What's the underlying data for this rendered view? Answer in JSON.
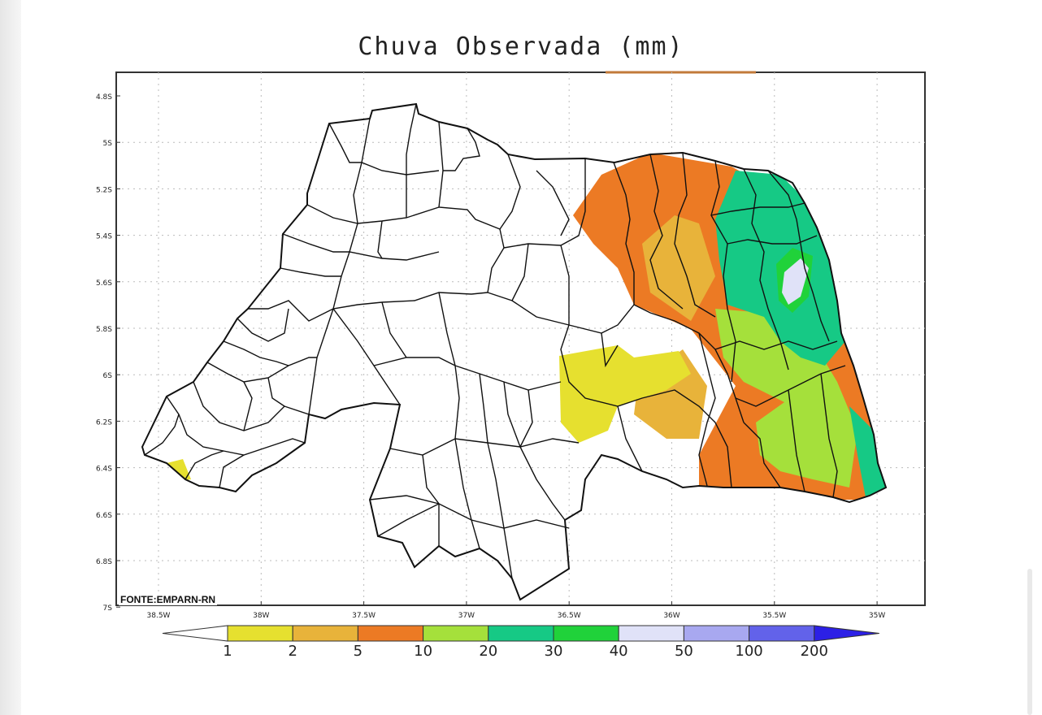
{
  "title": "Chuva Observada (mm)",
  "source_note": "FONTE:EMPARN-RN",
  "lat_ticks": [
    "4.8S",
    "5S",
    "5.2S",
    "5.4S",
    "5.6S",
    "5.8S",
    "6S",
    "6.2S",
    "6.4S",
    "6.6S",
    "6.8S",
    "7S"
  ],
  "lon_ticks": [
    "38.5W",
    "38W",
    "37.5W",
    "37W",
    "36.5W",
    "36W",
    "35.5W",
    "35W"
  ],
  "legend": {
    "unit": "mm",
    "labels": [
      "1",
      "2",
      "5",
      "10",
      "20",
      "30",
      "40",
      "50",
      "100",
      "200"
    ],
    "colors": [
      "#e6e02f",
      "#e8b33a",
      "#ec7a24",
      "#a5e03b",
      "#16c985",
      "#20d23a",
      "#e0e2f8",
      "#a8a8f0",
      "#6262ea",
      "#2c20e6"
    ],
    "below_color": "#ffffff"
  },
  "colors": {
    "frame": "#333333",
    "outline": "#111111"
  }
}
